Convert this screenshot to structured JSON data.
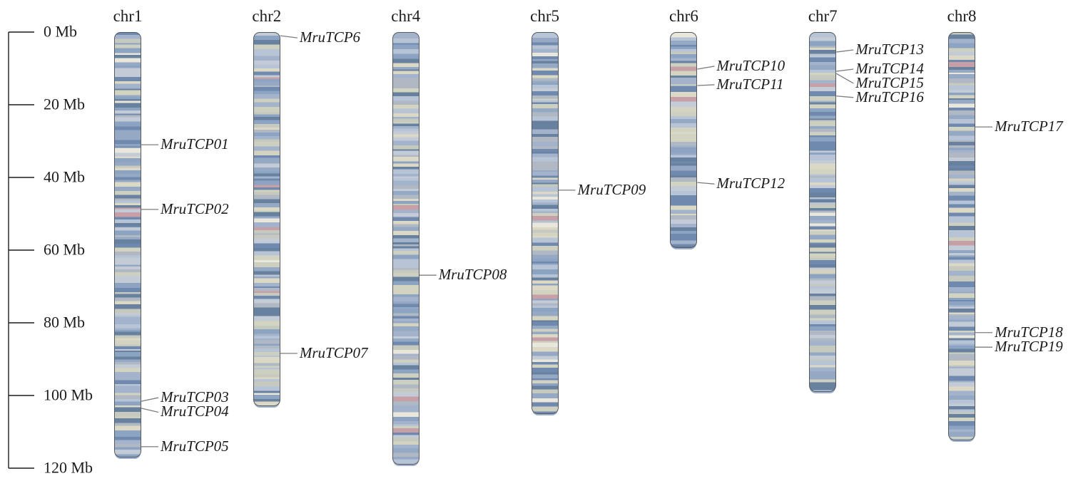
{
  "figure": {
    "description": "Chromosomal localization map of MruTCP genes",
    "unit_label": "Mb"
  },
  "chart_data": {
    "type": "chromosome_map",
    "unit": "Mb",
    "axis_range": [
      0,
      120
    ],
    "tick_interval": 20,
    "tick_labels": [
      "0 Mb",
      "20 Mb",
      "40 Mb",
      "60 Mb",
      "80 Mb",
      "100 Mb",
      "120 Mb"
    ],
    "tick_values": [
      0,
      20,
      40,
      60,
      80,
      100,
      120
    ],
    "legend": null,
    "grid": false,
    "chromosomes": [
      {
        "name": "chr1",
        "length_mb": 117.0,
        "genes": [
          {
            "label": "MruTCP01",
            "pos_mb": 31.0,
            "label_mb": 31.0
          },
          {
            "label": "MruTCP02",
            "pos_mb": 48.8,
            "label_mb": 48.8
          },
          {
            "label": "MruTCP03",
            "pos_mb": 101.6,
            "label_mb": 100.6
          },
          {
            "label": "MruTCP04",
            "pos_mb": 103.5,
            "label_mb": 104.6
          },
          {
            "label": "MruTCP05",
            "pos_mb": 114.1,
            "label_mb": 114.1
          }
        ]
      },
      {
        "name": "chr2",
        "length_mb": 103.0,
        "genes": [
          {
            "label": "MruTCP6",
            "pos_mb": 1.0,
            "label_mb": 1.6
          },
          {
            "label": "MruTCP07",
            "pos_mb": 88.4,
            "label_mb": 88.4
          }
        ]
      },
      {
        "name": "chr4",
        "length_mb": 119.0,
        "genes": [
          {
            "label": "MruTCP08",
            "pos_mb": 66.9,
            "label_mb": 66.9
          }
        ]
      },
      {
        "name": "chr5",
        "length_mb": 105.0,
        "genes": [
          {
            "label": "MruTCP09",
            "pos_mb": 43.5,
            "label_mb": 43.5
          }
        ]
      },
      {
        "name": "chr6",
        "length_mb": 59.5,
        "genes": [
          {
            "label": "MruTCP10",
            "pos_mb": 10.2,
            "label_mb": 9.4
          },
          {
            "label": "MruTCP11",
            "pos_mb": 14.7,
            "label_mb": 14.5
          },
          {
            "label": "MruTCP12",
            "pos_mb": 41.4,
            "label_mb": 41.8
          }
        ]
      },
      {
        "name": "chr7",
        "length_mb": 99.0,
        "genes": [
          {
            "label": "MruTCP13",
            "pos_mb": 5.5,
            "label_mb": 4.9
          },
          {
            "label": "MruTCP14",
            "pos_mb": 10.8,
            "label_mb": 10.2
          },
          {
            "label": "MruTCP15",
            "pos_mb": 11.4,
            "label_mb": 14.1
          },
          {
            "label": "MruTCP16",
            "pos_mb": 17.6,
            "label_mb": 18.0
          }
        ]
      },
      {
        "name": "chr8",
        "length_mb": 112.4,
        "genes": [
          {
            "label": "MruTCP17",
            "pos_mb": 26.1,
            "label_mb": 26.1
          },
          {
            "label": "MruTCP18",
            "pos_mb": 82.7,
            "label_mb": 82.7
          },
          {
            "label": "MruTCP19",
            "pos_mb": 86.7,
            "label_mb": 86.7
          }
        ]
      }
    ]
  },
  "colors": {
    "band_blues": [
      "#8ca3c2",
      "#b7c4d6",
      "#7089ae",
      "#a3b3cb",
      "#95a9c5",
      "#c3cbd7",
      "#67819f",
      "#b0b9c3"
    ],
    "band_beiges": [
      "#cdd0c0",
      "#dbd8c6",
      "#c6c9bd",
      "#d3d3c2"
    ],
    "band_accent_pink": "#c79fa6",
    "band_highlight": "#e9e7db",
    "bar_border": "#555a61",
    "leader_line": "#7d7d7d",
    "axis_line": "#1c1c1c",
    "text": "#1c1c1c"
  }
}
